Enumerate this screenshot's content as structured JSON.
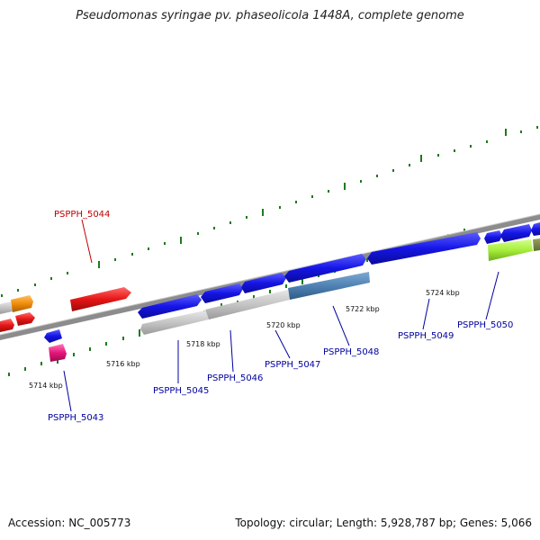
{
  "header": {
    "title": "Pseudomonas syringae pv. phaseolicola 1448A, complete genome"
  },
  "footer": {
    "accession": "Accession: NC_005773",
    "summary": "Topology: circular; Length: 5,928,787 bp; Genes: 5,066"
  },
  "colors": {
    "backbone": "#8c8c8c",
    "tick": "#1e7a1e",
    "blue_gene": "#1515e6",
    "red_gene": "#e61515",
    "orange_gene": "#f08c0a",
    "grey_gene": "#bdbdbd",
    "steel_gene": "#4f82b4",
    "lime_gene": "#a6ee3a",
    "pink_gene": "#e6157a",
    "label_blue": "#0000a0",
    "label_red": "#c00000"
  },
  "scale_labels": [
    "5714 kbp",
    "5716 kbp",
    "5718 kbp",
    "5720 kbp",
    "5722 kbp",
    "5724 kbp"
  ],
  "gene_labels": [
    {
      "text": "PSPPH_5043",
      "color": "blue"
    },
    {
      "text": "PSPPH_5044",
      "color": "red"
    },
    {
      "text": "PSPPH_5045",
      "color": "blue"
    },
    {
      "text": "PSPPH_5046",
      "color": "blue"
    },
    {
      "text": "PSPPH_5047",
      "color": "blue"
    },
    {
      "text": "PSPPH_5048",
      "color": "blue"
    },
    {
      "text": "PSPPH_5049",
      "color": "blue"
    },
    {
      "text": "PSPPH_5050",
      "color": "blue"
    }
  ]
}
